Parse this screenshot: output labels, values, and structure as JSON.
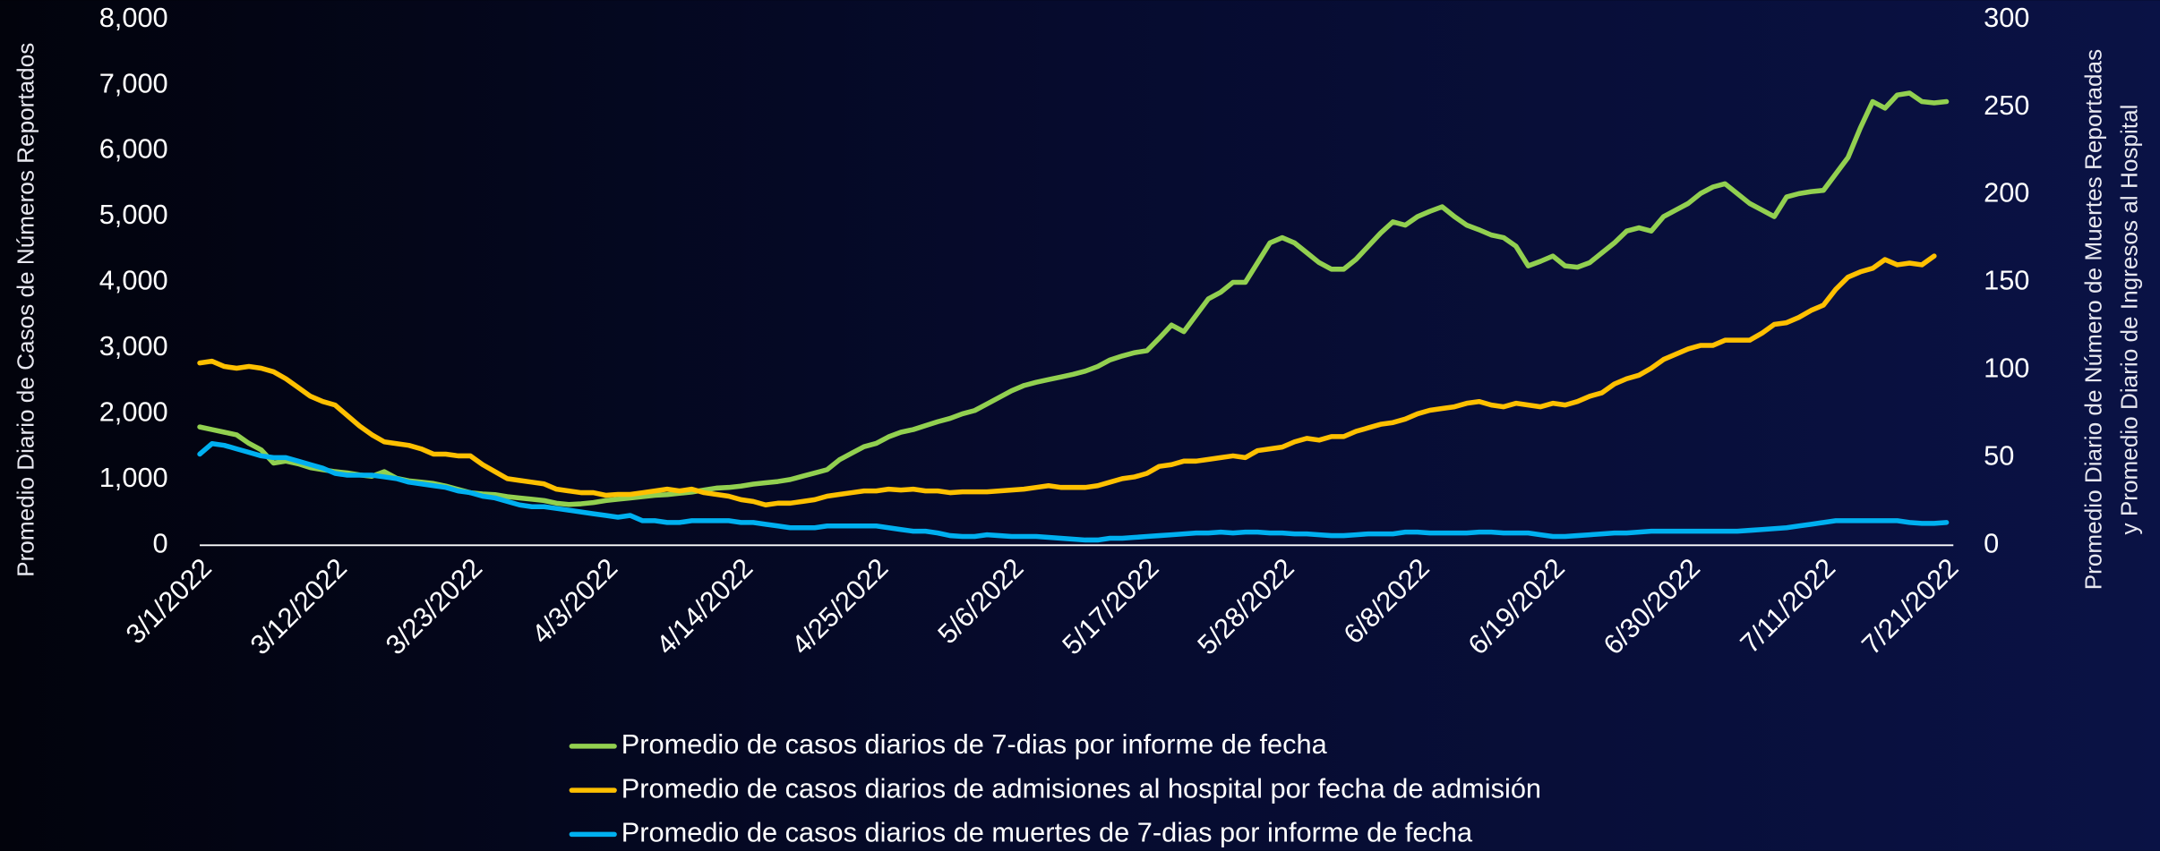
{
  "chart_data": {
    "type": "line",
    "ylabel": "Promedio Diario de Casos de Números Reportados",
    "y2label": [
      "Promedio Diario de Número de Muertes Reportadas",
      "y Promedio  Diario de Ingresos al Hospital"
    ],
    "categories": [
      "3/1/2022",
      null,
      null,
      null,
      null,
      null,
      null,
      null,
      null,
      null,
      null,
      "3/12/2022",
      null,
      null,
      null,
      null,
      null,
      null,
      null,
      null,
      null,
      null,
      "3/23/2022",
      null,
      null,
      null,
      null,
      null,
      null,
      null,
      null,
      null,
      null,
      "4/3/2022",
      null,
      null,
      null,
      null,
      null,
      null,
      null,
      null,
      null,
      null,
      "4/14/2022",
      null,
      null,
      null,
      null,
      null,
      null,
      null,
      null,
      null,
      null,
      "4/25/2022",
      null,
      null,
      null,
      null,
      null,
      null,
      null,
      null,
      null,
      null,
      "5/6/2022",
      null,
      null,
      null,
      null,
      null,
      null,
      null,
      null,
      null,
      null,
      "5/17/2022",
      null,
      null,
      null,
      null,
      null,
      null,
      null,
      null,
      null,
      null,
      "5/28/2022",
      null,
      null,
      null,
      null,
      null,
      null,
      null,
      null,
      null,
      null,
      "6/8/2022",
      null,
      null,
      null,
      null,
      null,
      null,
      null,
      null,
      null,
      null,
      "6/19/2022",
      null,
      null,
      null,
      null,
      null,
      null,
      null,
      null,
      null,
      null,
      "6/30/2022",
      null,
      null,
      null,
      null,
      null,
      null,
      null,
      null,
      null,
      null,
      "7/11/2022",
      null,
      null,
      null,
      null,
      null,
      null,
      null,
      null,
      null,
      "7/21/2022"
    ],
    "ylim": [
      0,
      8000
    ],
    "yticks": [
      0,
      {
        "value": 1000,
        "label": "1,000"
      },
      {
        "value": 2000,
        "label": "2,000"
      },
      {
        "value": 3000,
        "label": "3,000"
      },
      {
        "value": 4000,
        "label": "4,000"
      },
      {
        "value": 5000,
        "label": "5,000"
      },
      {
        "value": 6000,
        "label": "6,000"
      },
      {
        "value": 7000,
        "label": "7,000"
      },
      {
        "value": 8000,
        "label": "8,000"
      }
    ],
    "y2lim": [
      0,
      300
    ],
    "y2ticks": [
      0,
      50,
      100,
      150,
      200,
      250,
      300
    ],
    "grid": false,
    "series": [
      {
        "name": "Promedio de casos diarios de 7-dias por informe de fecha",
        "color": "#92d050",
        "values": [
          1800,
          1760,
          1720,
          1680,
          1550,
          1450,
          1250,
          1280,
          1240,
          1180,
          1150,
          1120,
          1100,
          1070,
          1050,
          1120,
          1020,
          980,
          960,
          940,
          900,
          850,
          800,
          780,
          770,
          740,
          720,
          700,
          680,
          640,
          620,
          630,
          650,
          680,
          700,
          720,
          740,
          760,
          770,
          790,
          810,
          840,
          870,
          880,
          900,
          930,
          950,
          970,
          1000,
          1050,
          1100,
          1150,
          1300,
          1400,
          1500,
          1550,
          1650,
          1720,
          1760,
          1820,
          1880,
          1930,
          2000,
          2050,
          2150,
          2250,
          2350,
          2430,
          2480,
          2520,
          2560,
          2600,
          2650,
          2720,
          2820,
          2880,
          2930,
          2960,
          3150,
          3350,
          3250,
          3500,
          3750,
          3850,
          4000,
          4000,
          4300,
          4600,
          4680,
          4600,
          4450,
          4300,
          4200,
          4200,
          4350,
          4550,
          4750,
          4920,
          4870,
          5000,
          5080,
          5150,
          5000,
          4870,
          4800,
          4720,
          4680,
          4550,
          4250,
          4320,
          4400,
          4250,
          4230,
          4300,
          4450,
          4600,
          4780,
          4830,
          4780,
          5000,
          5100,
          5200,
          5350,
          5450,
          5500,
          5350,
          5200,
          5100,
          5000,
          5300,
          5350,
          5380,
          5400,
          5650,
          5900,
          6350,
          6750,
          6650,
          6850,
          6880,
          6750,
          6730,
          6750
        ]
      },
      {
        "name": "Promedio de casos diarios de admisiones al hospital por fecha de admisión",
        "color": "#ffc000",
        "axis": "y2",
        "values": [
          104,
          105,
          102,
          101,
          102,
          101,
          99,
          95,
          90,
          85,
          82,
          80,
          74,
          68,
          63,
          59,
          58,
          57,
          55,
          52,
          52,
          51,
          51,
          46,
          42,
          38,
          37,
          36,
          35,
          32,
          31,
          30,
          30,
          28.5,
          29,
          29,
          30,
          31,
          32,
          31,
          32,
          30,
          29,
          28,
          26,
          25,
          23,
          24,
          24,
          25,
          26,
          28,
          29,
          30,
          31,
          31,
          32,
          31.5,
          32,
          31,
          31,
          30,
          30.5,
          30.5,
          30.5,
          31,
          31.5,
          32,
          33,
          34,
          33,
          33,
          33,
          34,
          36,
          38,
          39,
          41,
          45,
          46,
          48,
          48,
          49,
          50,
          51,
          50,
          54,
          55,
          56,
          59,
          61,
          60,
          62,
          62,
          65,
          67,
          69,
          70,
          72,
          75,
          77,
          78,
          79,
          81,
          82,
          80,
          79,
          81,
          80,
          79,
          81,
          80,
          82,
          85,
          87,
          92,
          95,
          97,
          101,
          106,
          109,
          112,
          114,
          114,
          117,
          117,
          117,
          121,
          126,
          127,
          130,
          134,
          137,
          146,
          153,
          156,
          158,
          163,
          160,
          161,
          160,
          165,
          null
        ]
      },
      {
        "name": "Promedio de casos diarios de muertes de 7-dias por informe de fecha",
        "color": "#00b0f0",
        "axis": "y2",
        "values": [
          52,
          58,
          57,
          55,
          53,
          51,
          50,
          50,
          48,
          46,
          44,
          41,
          40,
          40,
          40,
          39,
          38,
          36,
          35,
          34,
          33,
          31,
          30,
          28,
          27,
          25,
          23,
          22,
          22,
          21,
          20,
          19,
          18,
          17,
          16,
          17,
          14,
          14,
          13,
          13,
          14,
          14,
          14,
          14,
          13,
          13,
          12,
          11,
          10,
          10,
          10,
          11,
          11,
          11,
          11,
          11,
          10,
          9,
          8,
          8,
          7,
          5.5,
          5,
          5,
          6,
          5.5,
          5,
          5,
          5,
          4.5,
          4,
          3.5,
          3,
          3,
          4,
          4,
          4.5,
          5,
          5.5,
          6,
          6.5,
          7,
          7,
          7.5,
          7,
          7.5,
          7.5,
          7,
          7,
          6.5,
          6.5,
          6,
          5.5,
          5.5,
          6,
          6.5,
          6.5,
          6.5,
          7.5,
          7.5,
          7,
          7,
          7,
          7,
          7.5,
          7.5,
          7,
          7,
          7,
          6,
          5,
          5,
          5.5,
          6,
          6.5,
          7,
          7,
          7.5,
          8,
          8,
          8,
          8,
          8,
          8,
          8,
          8,
          8.5,
          9,
          9.5,
          10,
          11,
          12,
          13,
          14,
          14,
          14,
          14,
          14,
          14,
          13,
          12.5,
          12.5,
          13
        ]
      }
    ]
  }
}
